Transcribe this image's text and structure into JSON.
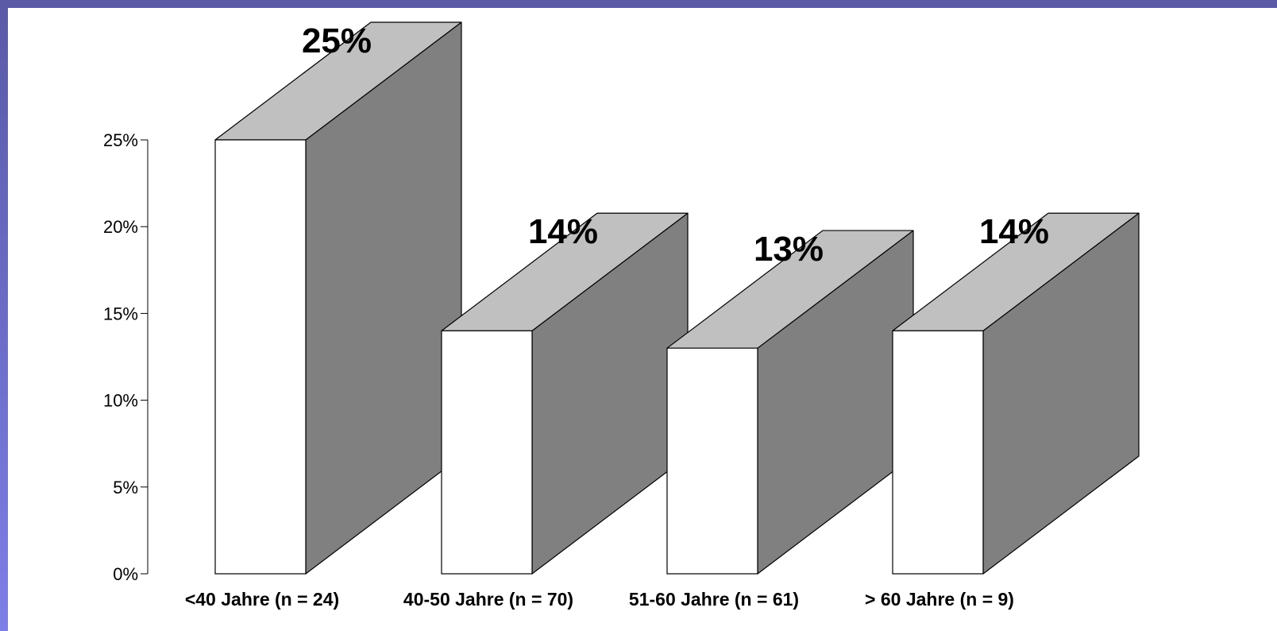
{
  "chart_data": {
    "type": "bar",
    "categories": [
      "<40 Jahre (n = 24)",
      "40-50 Jahre (n = 70)",
      "51-60 Jahre (n = 61)",
      "> 60 Jahre (n = 9)"
    ],
    "values": [
      25,
      14,
      13,
      14
    ],
    "data_labels": [
      "25%",
      "14%",
      "13%",
      "14%"
    ],
    "y_ticks": [
      0,
      5,
      10,
      15,
      20,
      25
    ],
    "y_tick_labels": [
      "0%",
      "5%",
      "10%",
      "15%",
      "20%",
      "25%"
    ],
    "ylim": [
      0,
      25
    ],
    "grid": false,
    "legend": "none",
    "style": "3d-blocks",
    "colors": {
      "front": "#ffffff",
      "top": "#c0c0c0",
      "side": "#808080",
      "outline": "#000000",
      "frame_gradient_top": "#5a5aa6",
      "frame_gradient_bottom": "#7e7ee8"
    }
  }
}
